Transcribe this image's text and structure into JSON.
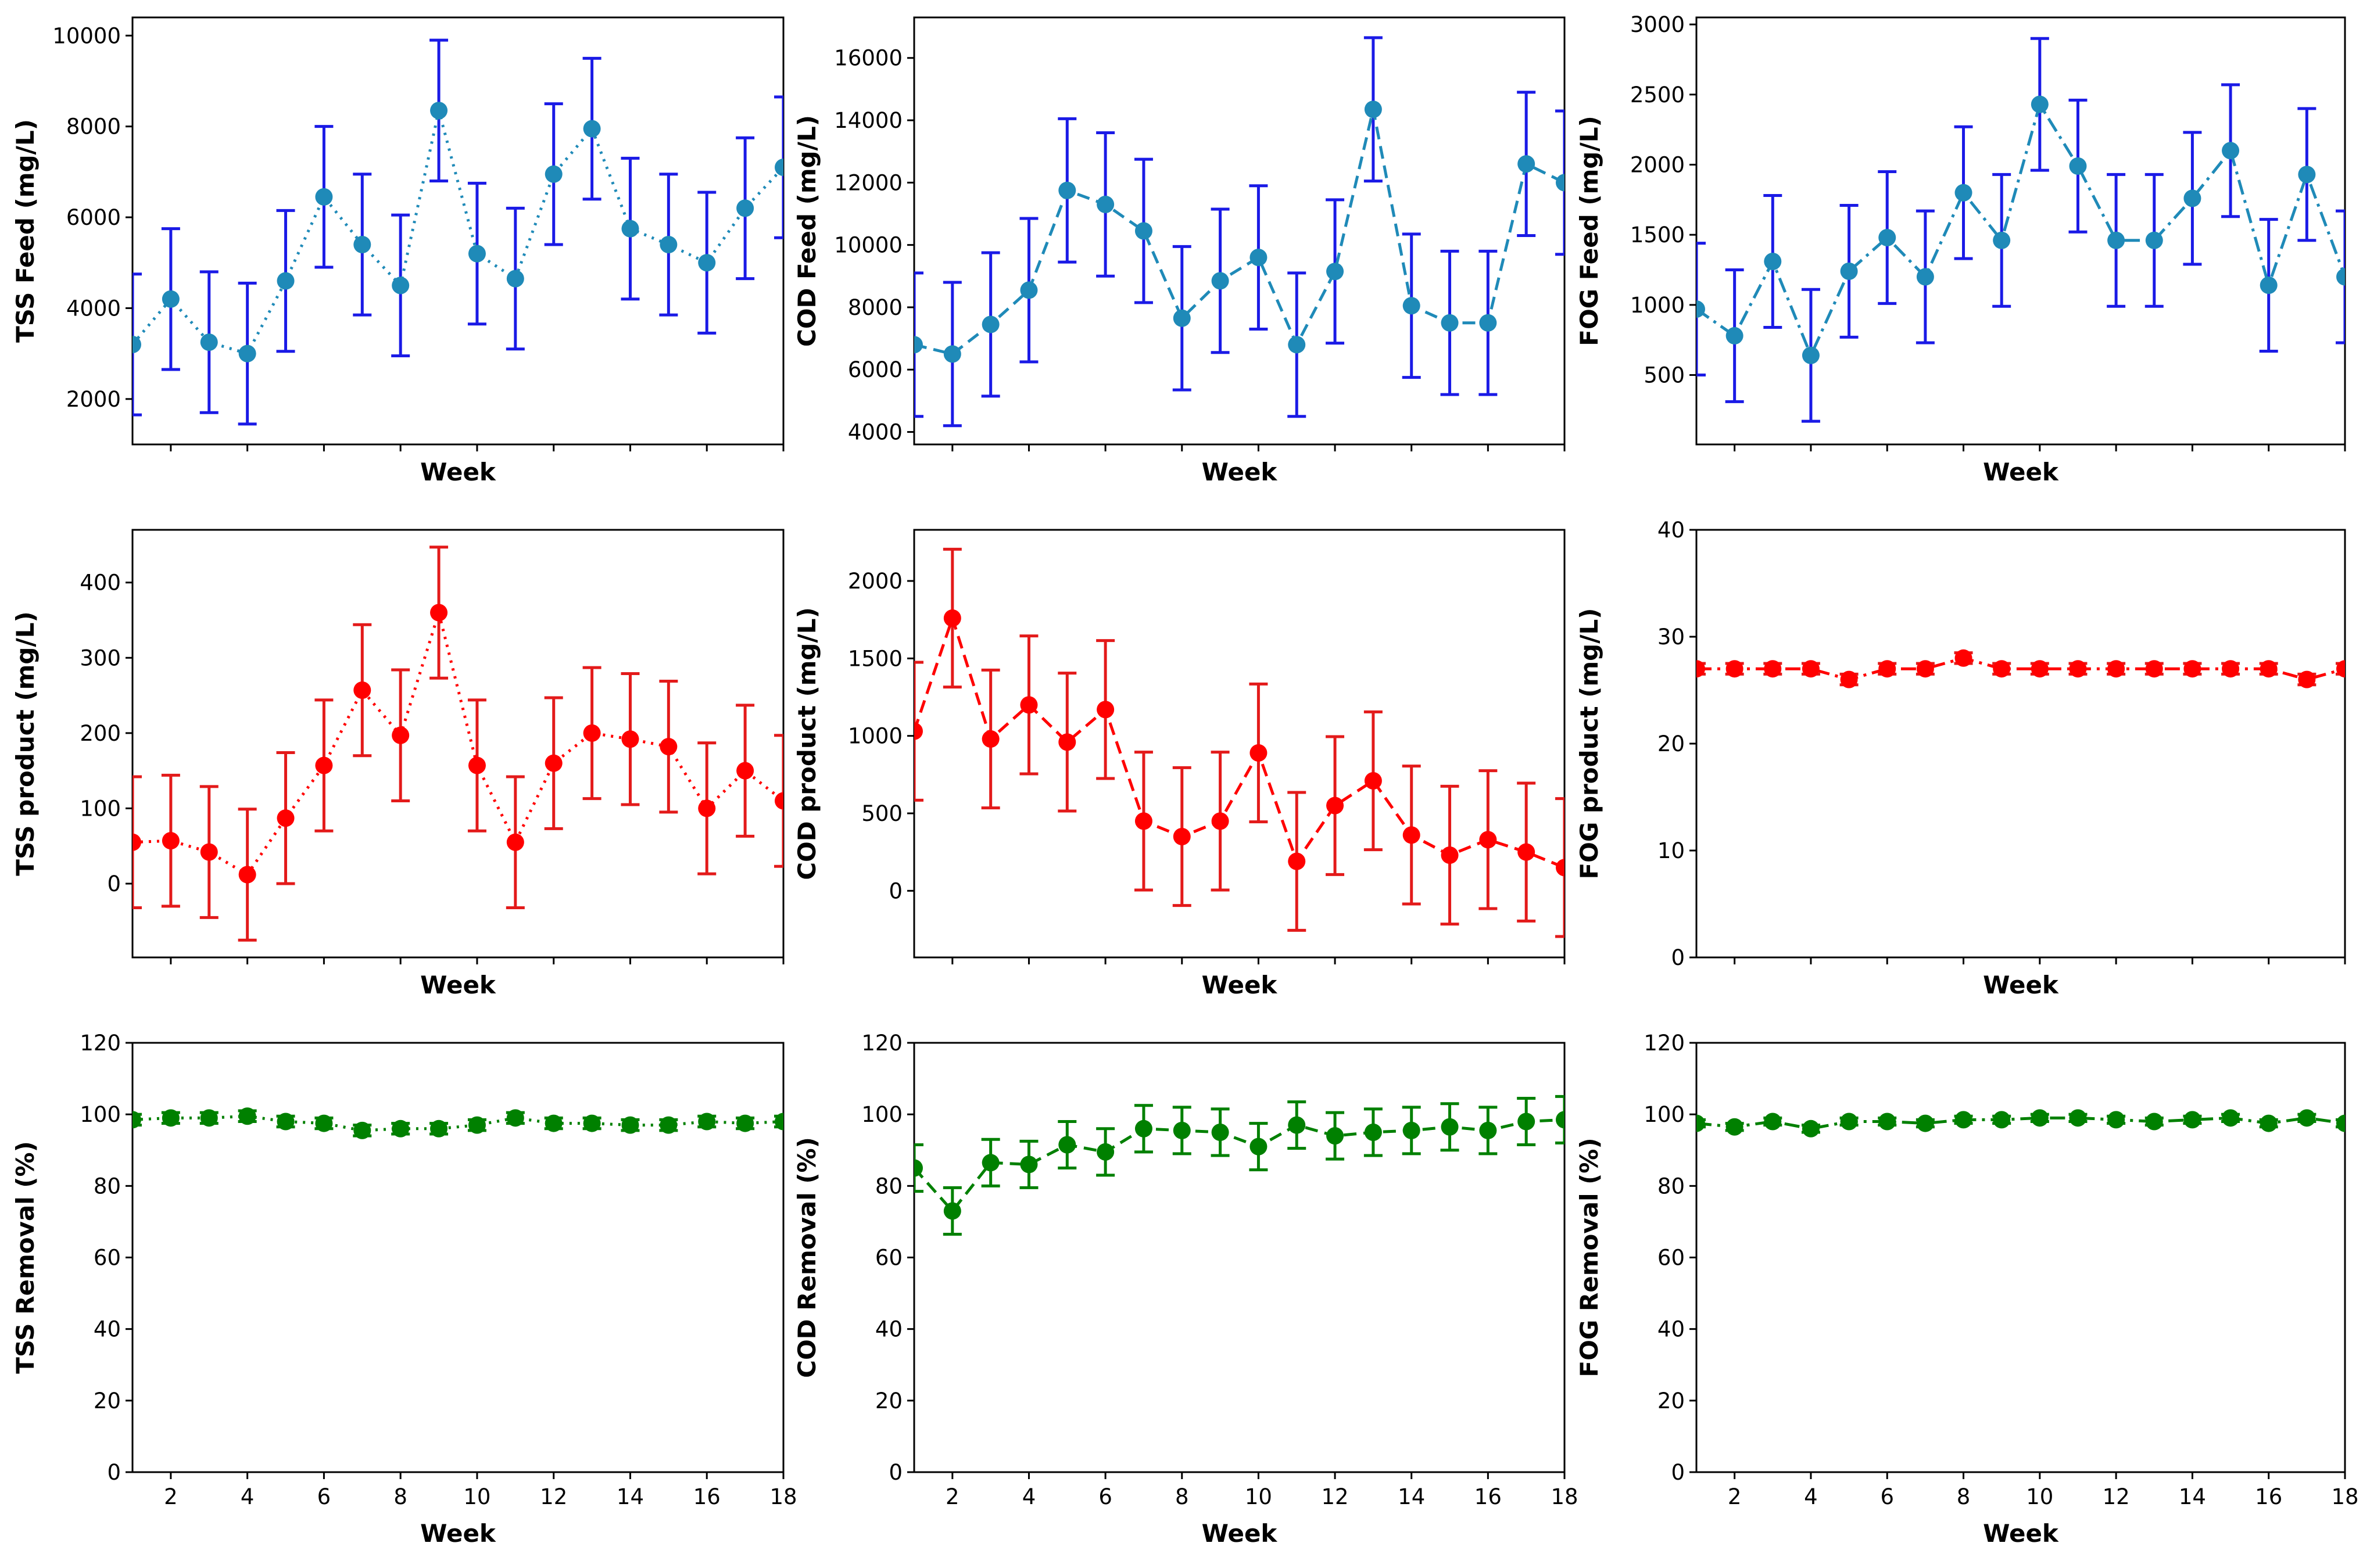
{
  "figure_colors": {
    "feed_line": "#1f8ab8",
    "feed_marker": "#1f8ab8",
    "feed_error": "#1a1ae6",
    "product_line": "#ff0000",
    "product_marker": "#ff0000",
    "product_error": "#e31a1a",
    "removal_line": "#008000",
    "removal_marker": "#008000",
    "removal_error": "#008000"
  },
  "chart_data": [
    {
      "id": "tss-feed",
      "type": "line",
      "title": "",
      "xlabel": "Week",
      "ylabel": "TSS Feed (mg/L)",
      "linestyle": "dotted",
      "group": "feed",
      "show_xticks": false,
      "xlim": [
        1,
        18
      ],
      "ylim": [
        1000,
        10400
      ],
      "yticks": [
        2000,
        4000,
        6000,
        8000,
        10000
      ],
      "xticks": [
        2,
        4,
        6,
        8,
        10,
        12,
        14,
        16,
        18
      ],
      "x": [
        1,
        2,
        3,
        4,
        5,
        6,
        7,
        8,
        9,
        10,
        11,
        12,
        13,
        14,
        15,
        16,
        17,
        18
      ],
      "values": [
        3200,
        4200,
        3250,
        3000,
        4600,
        6450,
        5400,
        4500,
        8350,
        5200,
        4650,
        6950,
        7950,
        5750,
        5400,
        5000,
        6200,
        7100
      ],
      "errors": [
        1550,
        1550,
        1550,
        1550,
        1550,
        1550,
        1550,
        1550,
        1550,
        1550,
        1550,
        1550,
        1550,
        1550,
        1550,
        1550,
        1550,
        1550
      ]
    },
    {
      "id": "cod-feed",
      "type": "line",
      "title": "",
      "xlabel": "Week",
      "ylabel": "COD Feed (mg/L)",
      "linestyle": "dashed",
      "group": "feed",
      "show_xticks": false,
      "xlim": [
        1,
        18
      ],
      "ylim": [
        3600,
        17300
      ],
      "yticks": [
        4000,
        6000,
        8000,
        10000,
        12000,
        14000,
        16000
      ],
      "xticks": [
        2,
        4,
        6,
        8,
        10,
        12,
        14,
        16,
        18
      ],
      "x": [
        1,
        2,
        3,
        4,
        5,
        6,
        7,
        8,
        9,
        10,
        11,
        12,
        13,
        14,
        15,
        16,
        17,
        18
      ],
      "values": [
        6800,
        6500,
        7450,
        8550,
        11750,
        11300,
        10450,
        7650,
        8850,
        9600,
        6800,
        9150,
        14350,
        8050,
        7500,
        7500,
        12600,
        12000
      ],
      "errors": [
        2300,
        2300,
        2300,
        2300,
        2300,
        2300,
        2300,
        2300,
        2300,
        2300,
        2300,
        2300,
        2300,
        2300,
        2300,
        2300,
        2300,
        2300
      ]
    },
    {
      "id": "fog-feed",
      "type": "line",
      "title": "",
      "xlabel": "Week",
      "ylabel": "FOG Feed (mg/L)",
      "linestyle": "dashdot",
      "group": "feed",
      "show_xticks": false,
      "xlim": [
        1,
        18
      ],
      "ylim": [
        5,
        3050
      ],
      "yticks": [
        500,
        1000,
        1500,
        2000,
        2500,
        3000
      ],
      "xticks": [
        2,
        4,
        6,
        8,
        10,
        12,
        14,
        16,
        18
      ],
      "x": [
        1,
        2,
        3,
        4,
        5,
        6,
        7,
        8,
        9,
        10,
        11,
        12,
        13,
        14,
        15,
        16,
        17,
        18
      ],
      "values": [
        970,
        780,
        1310,
        640,
        1240,
        1480,
        1200,
        1800,
        1460,
        2430,
        1990,
        1460,
        1460,
        1760,
        2100,
        1140,
        1930,
        1200
      ],
      "errors": [
        470,
        470,
        470,
        470,
        470,
        470,
        470,
        470,
        470,
        470,
        470,
        470,
        470,
        470,
        470,
        470,
        470,
        470
      ]
    },
    {
      "id": "tss-product",
      "type": "line",
      "title": "",
      "xlabel": "Week",
      "ylabel": "TSS product (mg/L)",
      "linestyle": "dotted",
      "group": "product",
      "show_xticks": false,
      "xlim": [
        1,
        18
      ],
      "ylim": [
        -98,
        470
      ],
      "yticks": [
        0,
        100,
        200,
        300,
        400
      ],
      "xticks": [
        2,
        4,
        6,
        8,
        10,
        12,
        14,
        16,
        18
      ],
      "x": [
        1,
        2,
        3,
        4,
        5,
        6,
        7,
        8,
        9,
        10,
        11,
        12,
        13,
        14,
        15,
        16,
        17,
        18
      ],
      "values": [
        55,
        57,
        42,
        12,
        87,
        157,
        257,
        197,
        360,
        157,
        55,
        160,
        200,
        192,
        182,
        100,
        150,
        110
      ],
      "errors": [
        87,
        87,
        87,
        87,
        87,
        87,
        87,
        87,
        87,
        87,
        87,
        87,
        87,
        87,
        87,
        87,
        87,
        87
      ]
    },
    {
      "id": "cod-product",
      "type": "line",
      "title": "",
      "xlabel": "Week",
      "ylabel": "COD product (mg/L)",
      "linestyle": "dashed",
      "group": "product",
      "show_xticks": false,
      "xlim": [
        1,
        18
      ],
      "ylim": [
        -430,
        2330
      ],
      "yticks": [
        0,
        500,
        1000,
        1500,
        2000
      ],
      "xticks": [
        2,
        4,
        6,
        8,
        10,
        12,
        14,
        16,
        18
      ],
      "x": [
        1,
        2,
        3,
        4,
        5,
        6,
        7,
        8,
        9,
        10,
        11,
        12,
        13,
        14,
        15,
        16,
        17,
        18
      ],
      "values": [
        1030,
        1760,
        980,
        1200,
        960,
        1170,
        450,
        350,
        450,
        890,
        190,
        550,
        710,
        360,
        230,
        330,
        250,
        150
      ],
      "errors": [
        445,
        445,
        445,
        445,
        445,
        445,
        445,
        445,
        445,
        445,
        445,
        445,
        445,
        445,
        445,
        445,
        445,
        445
      ]
    },
    {
      "id": "fog-product",
      "type": "line",
      "title": "",
      "xlabel": "Week",
      "ylabel": "FOG product (mg/L)",
      "linestyle": "dashdot",
      "group": "product",
      "show_xticks": false,
      "xlim": [
        1,
        18
      ],
      "ylim": [
        0,
        40
      ],
      "yticks": [
        0,
        10,
        20,
        30,
        40
      ],
      "xticks": [
        2,
        4,
        6,
        8,
        10,
        12,
        14,
        16,
        18
      ],
      "x": [
        1,
        2,
        3,
        4,
        5,
        6,
        7,
        8,
        9,
        10,
        11,
        12,
        13,
        14,
        15,
        16,
        17,
        18
      ],
      "values": [
        27,
        27,
        27,
        27,
        26,
        27,
        27,
        28,
        27,
        27,
        27,
        27,
        27,
        27,
        27,
        27,
        26,
        27
      ],
      "errors": [
        0.5,
        0.5,
        0.5,
        0.5,
        0.5,
        0.5,
        0.5,
        0.5,
        0.5,
        0.5,
        0.5,
        0.5,
        0.5,
        0.5,
        0.5,
        0.5,
        0.5,
        0.5
      ]
    },
    {
      "id": "tss-removal",
      "type": "line",
      "title": "",
      "xlabel": "Week",
      "ylabel": "TSS Removal (%)",
      "linestyle": "dotted",
      "group": "removal",
      "show_xticks": true,
      "xlim": [
        1,
        18
      ],
      "ylim": [
        0,
        120
      ],
      "yticks": [
        0,
        20,
        40,
        60,
        80,
        100,
        120
      ],
      "xticks": [
        2,
        4,
        6,
        8,
        10,
        12,
        14,
        16,
        18
      ],
      "x": [
        1,
        2,
        3,
        4,
        5,
        6,
        7,
        8,
        9,
        10,
        11,
        12,
        13,
        14,
        15,
        16,
        17,
        18
      ],
      "values": [
        98.5,
        99,
        99,
        99.5,
        98,
        97.5,
        95.5,
        96,
        96,
        97,
        99,
        97.5,
        97.5,
        97,
        97,
        98,
        97.5,
        98
      ],
      "errors": [
        1.5,
        1.5,
        1.5,
        1.5,
        1.5,
        1.5,
        1.5,
        1.5,
        1.5,
        1.5,
        1.5,
        1.5,
        1.5,
        1.5,
        1.5,
        1.5,
        1.5,
        1.5
      ]
    },
    {
      "id": "cod-removal",
      "type": "line",
      "title": "",
      "xlabel": "Week",
      "ylabel": "COD Removal (%)",
      "linestyle": "dashed",
      "group": "removal",
      "show_xticks": true,
      "xlim": [
        1,
        18
      ],
      "ylim": [
        0,
        120
      ],
      "yticks": [
        0,
        20,
        40,
        60,
        80,
        100,
        120
      ],
      "xticks": [
        2,
        4,
        6,
        8,
        10,
        12,
        14,
        16,
        18
      ],
      "x": [
        1,
        2,
        3,
        4,
        5,
        6,
        7,
        8,
        9,
        10,
        11,
        12,
        13,
        14,
        15,
        16,
        17,
        18
      ],
      "values": [
        85,
        73,
        86.5,
        86,
        91.5,
        89.5,
        96,
        95.5,
        95,
        91,
        97,
        94,
        95,
        95.5,
        96.5,
        95.5,
        98,
        98.5
      ],
      "errors": [
        6.5,
        6.5,
        6.5,
        6.5,
        6.5,
        6.5,
        6.5,
        6.5,
        6.5,
        6.5,
        6.5,
        6.5,
        6.5,
        6.5,
        6.5,
        6.5,
        6.5,
        6.5
      ]
    },
    {
      "id": "fog-removal",
      "type": "line",
      "title": "",
      "xlabel": "Week",
      "ylabel": "FOG Removal (%)",
      "linestyle": "dashdot",
      "group": "removal",
      "show_xticks": true,
      "xlim": [
        1,
        18
      ],
      "ylim": [
        0,
        120
      ],
      "yticks": [
        0,
        20,
        40,
        60,
        80,
        100,
        120
      ],
      "xticks": [
        2,
        4,
        6,
        8,
        10,
        12,
        14,
        16,
        18
      ],
      "x": [
        1,
        2,
        3,
        4,
        5,
        6,
        7,
        8,
        9,
        10,
        11,
        12,
        13,
        14,
        15,
        16,
        17,
        18
      ],
      "values": [
        97.5,
        96.5,
        98,
        96,
        98,
        98,
        97.5,
        98.5,
        98.5,
        99,
        99,
        98.5,
        98,
        98.5,
        99,
        97.5,
        99,
        97.5
      ],
      "errors": [
        1,
        1,
        1,
        1,
        1,
        1,
        1,
        1,
        1,
        1,
        1,
        1,
        1,
        1,
        1,
        1,
        1,
        1
      ]
    }
  ]
}
